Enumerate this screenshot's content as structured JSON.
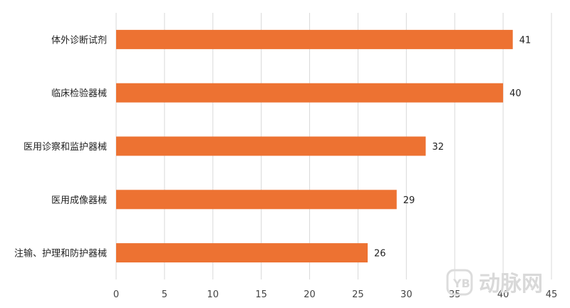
{
  "chart_data": {
    "type": "bar",
    "orientation": "horizontal",
    "categories": [
      "体外诊断试剂",
      "临床检验器械",
      "医用诊察和监护器械",
      "医用成像器械",
      "注输、护理和防护器械"
    ],
    "values": [
      41,
      40,
      32,
      29,
      26
    ],
    "title": "",
    "xlabel": "",
    "ylabel": "",
    "xlim": [
      0,
      45
    ],
    "xticks": [
      0,
      5,
      10,
      15,
      20,
      25,
      30,
      35,
      40,
      45
    ],
    "grid": "vertical",
    "bar_color": "#ED7232",
    "grid_color": "#d9d9d9"
  },
  "watermark": {
    "text": "动脉网",
    "color": "#d9d9d9"
  }
}
